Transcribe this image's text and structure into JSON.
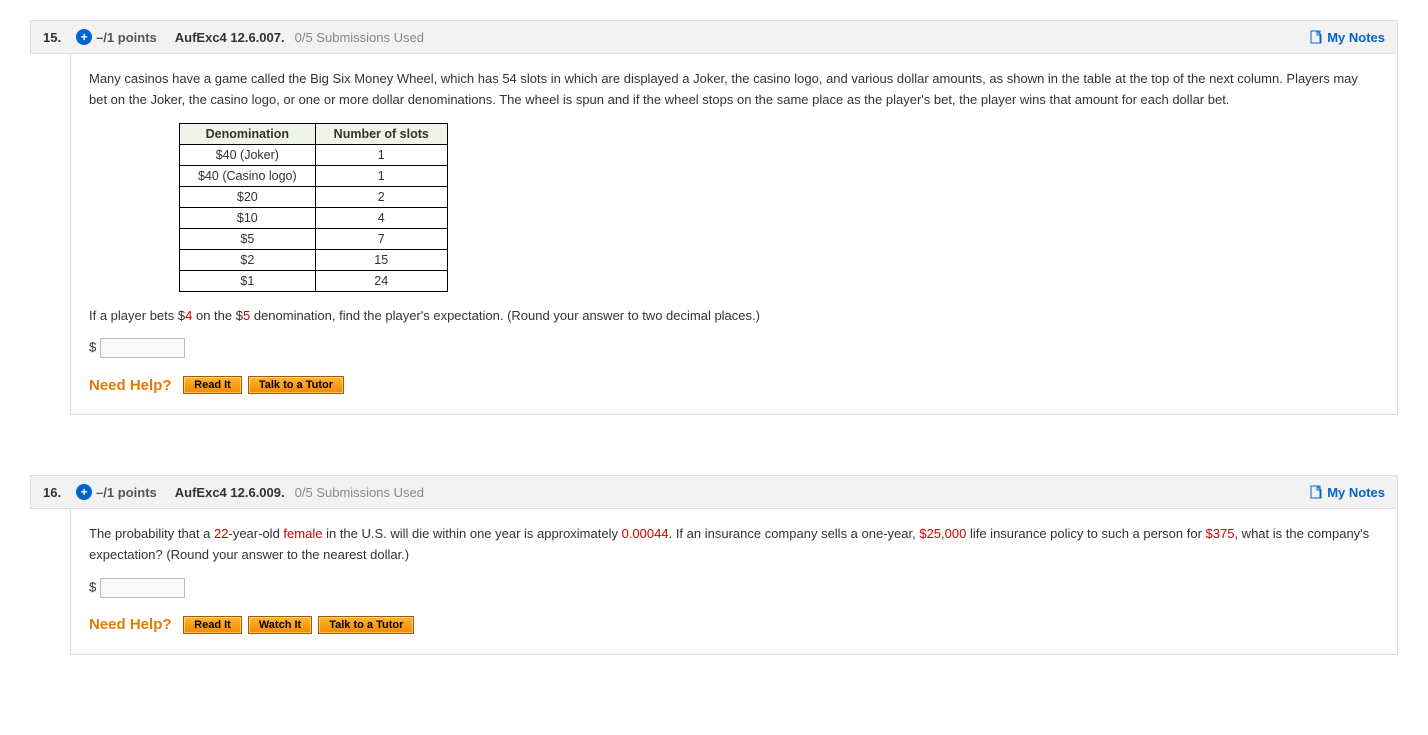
{
  "questions": [
    {
      "number": "15.",
      "points": "–/1 points",
      "assignment": "AufExc4 12.6.007.",
      "submissions": "0/5 Submissions Used",
      "my_notes": "My Notes",
      "prompt_1": "Many casinos have a game called the Big Six Money Wheel, which has 54 slots in which are displayed a Joker, the casino logo, and various dollar amounts, as shown in the table at the top of the next column. Players may bet on the Joker, the casino logo, or one or more dollar denominations. The wheel is spun and if the wheel stops on the same place as the player's bet, the player wins that amount for each dollar bet.",
      "table": {
        "headers": [
          "Denomination",
          "Number of slots"
        ],
        "rows": [
          [
            "$40 (Joker)",
            "1"
          ],
          [
            "$40 (Casino logo)",
            "1"
          ],
          [
            "$20",
            "2"
          ],
          [
            "$10",
            "4"
          ],
          [
            "$5",
            "7"
          ],
          [
            "$2",
            "15"
          ],
          [
            "$1",
            "24"
          ]
        ]
      },
      "prompt_2_pre": "If a player bets $",
      "prompt_2_red1": "4",
      "prompt_2_mid": " on the $",
      "prompt_2_red2": "5",
      "prompt_2_post": " denomination, find the player's expectation. (Round your answer to two decimal places.)",
      "currency": "$",
      "need_help": "Need Help?",
      "help_buttons": [
        "Read It",
        "Talk to a Tutor"
      ]
    },
    {
      "number": "16.",
      "points": "–/1 points",
      "assignment": "AufExc4 12.6.009.",
      "submissions": "0/5 Submissions Used",
      "my_notes": "My Notes",
      "parts": {
        "a": "The probability that a ",
        "r1": "22",
        "b": "-year-old ",
        "r2": "female",
        "c": " in the U.S. will die within one year is approximately ",
        "r3": "0.00044",
        "d": ". If an insurance company sells a one-year, ",
        "r4": "$25,000",
        "e": " life insurance policy to such a person for ",
        "r5": "$375",
        "f": ", what is the company's expectation? (Round your answer to the nearest dollar.)"
      },
      "currency": "$",
      "need_help": "Need Help?",
      "help_buttons": [
        "Read It",
        "Watch It",
        "Talk to a Tutor"
      ]
    }
  ]
}
